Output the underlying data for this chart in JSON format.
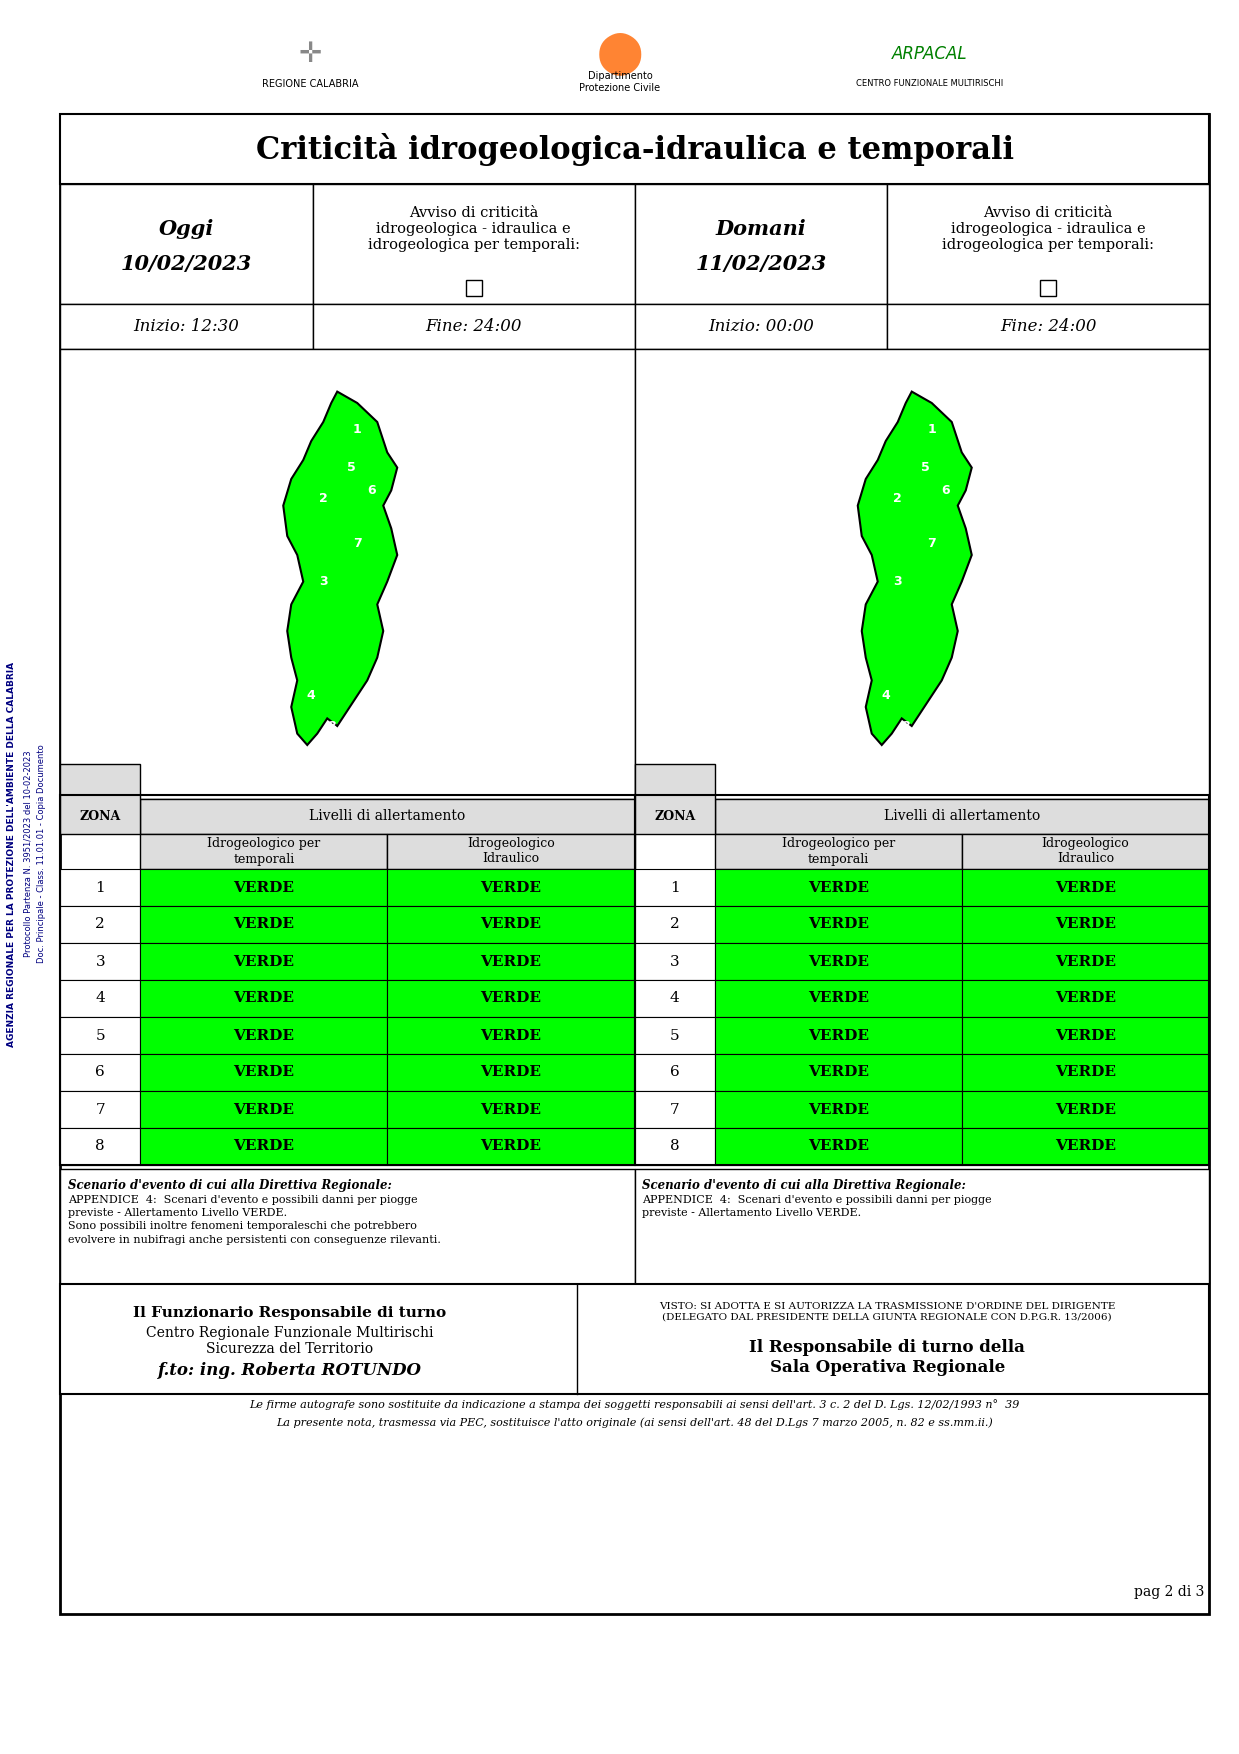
{
  "title": "Criticità idrogeologica-idraulica e temporali",
  "oggi_label": "Oggi",
  "oggi_date": "10/02/2023",
  "domani_label": "Domani",
  "domani_date": "11/02/2023",
  "avviso_label": "Avviso di criticità\nidrogeologica - idraulica e\nidrogeologica per temporali:",
  "inizio_oggi": "Inizio: 12:30",
  "fine_oggi": "Fine: 24:00",
  "inizio_domani": "Inizio: 00:00",
  "fine_domani": "Fine: 24:00",
  "zone": [
    1,
    2,
    3,
    4,
    5,
    6,
    7,
    8
  ],
  "livelli_header1": "Livelli di allertamento",
  "col_header1": "Idrogeologico per\ntemporali",
  "col_header2": "Idrogeologico\nIdraulico",
  "zona_label": "ZONA",
  "verde": "VERDE",
  "verde_color": "#00FF00",
  "verde_bg": "#00EE00",
  "table_header_bg": "#CCCCCC",
  "border_color": "#000000",
  "white": "#FFFFFF",
  "scenario_oggi_title": "Scenario d'evento di cui alla Direttiva Regionale:",
  "scenario_oggi_text": "APPENDICE  4:  Scenari d'evento e possibili danni per piogge\npreviste - Allertamento Livello VERDE.\nSono possibili inoltre fenomeni temporaleschi che potrebbero\nevolvere in nubifragi anche persistenti con conseguenze rilevanti.",
  "scenario_domani_title": "Scenario d'evento di cui alla Direttiva Regionale:",
  "scenario_domani_text": "APPENDICE  4:  Scenari d'evento e possibili danni per piogge\npreviste - Allertamento Livello VERDE.",
  "footer_left_bold": "Il Funzionario Responsabile di turno",
  "footer_left_normal": "Centro Regionale Funzionale Multirischi\nSicurezza del Territorio",
  "footer_left_italic": "f.to: ing. Roberta ROTUNDO",
  "footer_right_top": "VISTO: SI ADOTTA E SI AUTORIZZA LA TRASMISSIONE D'ORDINE DEL DIRIGENTE\n(DELEGATO DAL PRESIDENTE DELLA GIUNTA REGIONALE CON D.P.G.R. 13/2006)",
  "footer_right_bold": "Il Responsabile di turno della\nSala Operativa Regionale",
  "footnote1": "Le firme autografe sono sostituite da indicazione a stampa dei soggetti responsabili ai sensi dell'art. 3 c. 2 del D. Lgs. 12/02/1993 n°  39",
  "footnote2": "La presente nota, trasmessa via PEC, sostituisce l'atto originale (ai sensi dell'art. 48 del D.Lgs 7 marzo 2005, n. 82 e ss.mm.ii.)",
  "page_number": "pag 2 di 3",
  "side_text": "AGENZIA REGIONALE PER LA PROTEZIONE DELL'AMBIENTE DELLA CALABRIA",
  "side_text2": "Protocollo Partenza N. 3951/2023 del 10-02-2023",
  "side_text3": "Doc. Principale - Class. 11.01.01 - Copia Documento",
  "bg_color": "#FFFFFF",
  "outer_border": "#000000",
  "light_green": "#90EE90"
}
